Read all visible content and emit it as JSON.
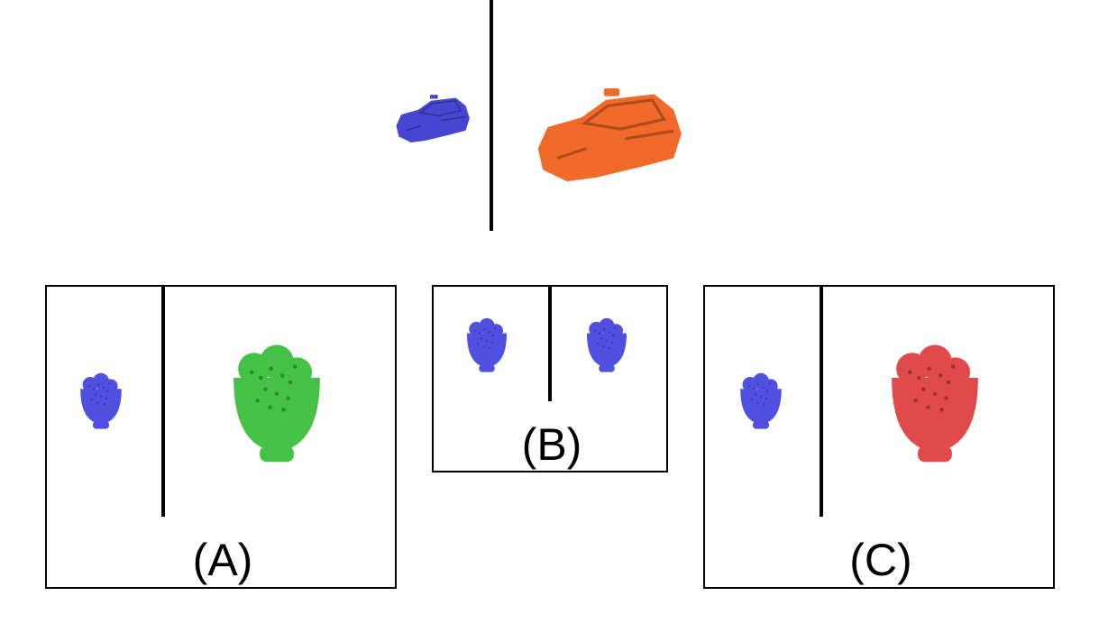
{
  "prompt": {
    "left_object": {
      "icon": "taxi-icon",
      "color": "#4646d2"
    },
    "right_object": {
      "icon": "taxi-icon",
      "color": "#f26a2a"
    }
  },
  "options": [
    {
      "label": "(A)",
      "left_icon": "plant-icon",
      "left_color": "#5050e0",
      "right_icon": "plant-icon",
      "right_color": "#45c245"
    },
    {
      "label": "(B)",
      "left_icon": "plant-icon",
      "left_color": "#5050e0",
      "right_icon": "plant-icon",
      "right_color": "#5050e0"
    },
    {
      "label": "(C)",
      "left_icon": "plant-icon",
      "left_color": "#5050e0",
      "right_icon": "plant-icon",
      "right_color": "#e04a4a"
    }
  ]
}
